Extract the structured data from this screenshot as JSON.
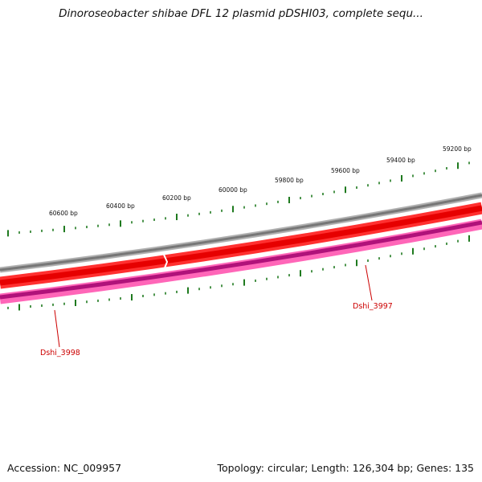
{
  "title": "Dinoroseobacter shibae DFL 12 plasmid pDSHI03, complete sequ...",
  "footer": {
    "accession": "Accession: NC_009957",
    "summary": "Topology: circular; Length: 126,304 bp; Genes: 135"
  },
  "ruler": {
    "labels": [
      "59200 bp",
      "59400 bp",
      "59600 bp",
      "59800 bp",
      "60000 bp",
      "60200 bp",
      "60400 bp",
      "60600 bp"
    ]
  },
  "genes": [
    {
      "label": "Dshi_3997"
    },
    {
      "label": "Dshi_3998"
    }
  ],
  "colors": {
    "backbone": "#808080",
    "forward_strand": "#ff0000",
    "reverse_strand": "#e8128a",
    "ticks": "#1f7a1f",
    "gene_label": "#cc0000"
  }
}
